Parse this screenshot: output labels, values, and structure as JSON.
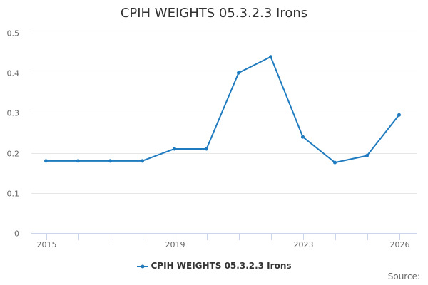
{
  "title": "CPIH WEIGHTS 05.3.2.3 Irons",
  "legend": {
    "label": "CPIH WEIGHTS 05.3.2.3 Irons"
  },
  "credits": {
    "source_label": "Source:"
  },
  "colors": {
    "series": "#1f7bbf",
    "grid": "#e6e6e6",
    "axis": "#ccd6eb",
    "text": "#666666"
  },
  "chart_data": {
    "type": "line",
    "title": "CPIH WEIGHTS 05.3.2.3 Irons",
    "xlabel": "",
    "ylabel": "",
    "x": [
      2015,
      2016,
      2017,
      2018,
      2019,
      2020,
      2021,
      2022,
      2023,
      2024,
      2025,
      2026
    ],
    "series": [
      {
        "name": "CPIH WEIGHTS 05.3.2.3 Irons",
        "values": [
          0.18,
          0.18,
          0.18,
          0.18,
          0.21,
          0.21,
          0.4,
          0.44,
          0.24,
          0.176,
          0.193,
          0.295
        ]
      }
    ],
    "x_tick_labels": [
      "2015",
      "2019",
      "2023",
      "2026"
    ],
    "y_tick_labels": [
      "0",
      "0.1",
      "0.2",
      "0.3",
      "0.4",
      "0.5"
    ],
    "ylim": [
      0,
      0.5
    ],
    "grid": true,
    "legend_position": "bottom"
  }
}
